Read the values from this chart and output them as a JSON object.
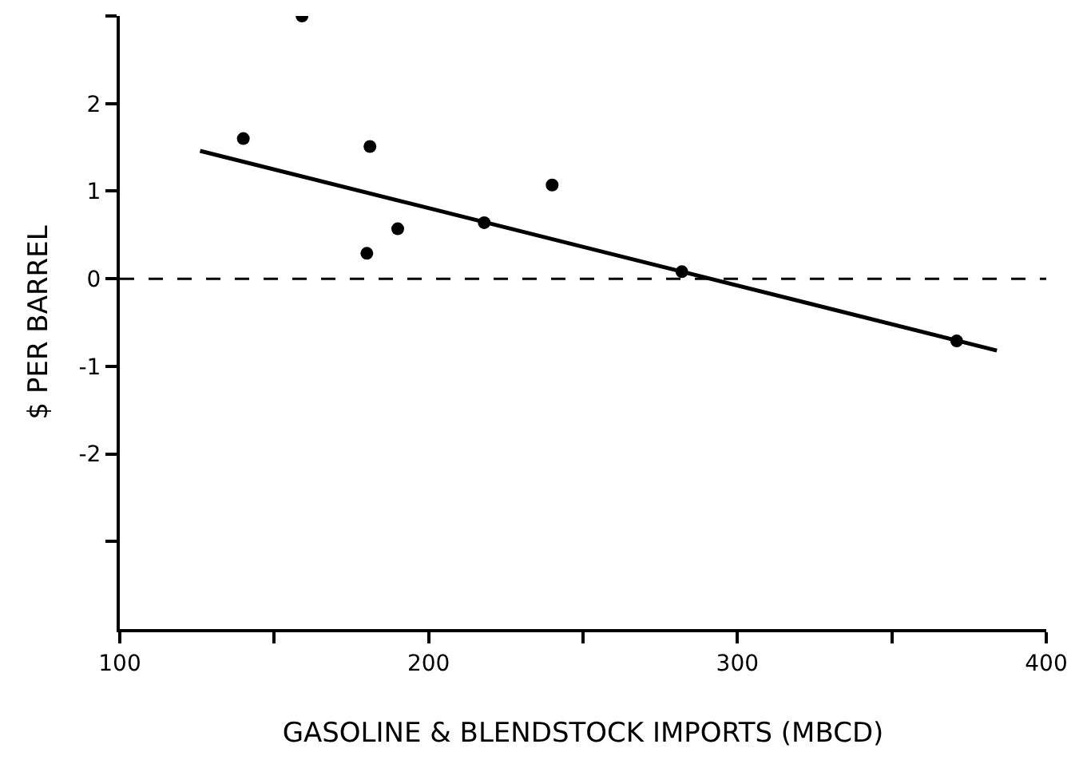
{
  "chart_data": {
    "type": "scatter",
    "xlabel": "GASOLINE & BLENDSTOCK IMPORTS (MBCD)",
    "ylabel": "$ PER BARREL",
    "xlim": [
      100,
      400
    ],
    "ylim": [
      -4,
      3
    ],
    "xticks": [
      100,
      {
        "value": 150,
        "label": null
      },
      200,
      {
        "value": 250,
        "label": null
      },
      300,
      {
        "value": 350,
        "label": null
      },
      400
    ],
    "yticks": [
      {
        "value": -3,
        "label": null
      },
      -2,
      -1,
      0,
      1,
      2,
      {
        "value": 3,
        "label": null
      }
    ],
    "ref_lines": [
      {
        "axis": "y",
        "value": 0,
        "line_style": "dashed",
        "color": "#000000"
      }
    ],
    "series": [
      {
        "marker": "circle",
        "color": "#000000",
        "x": [
          140,
          159,
          180,
          181,
          190,
          218,
          240,
          282,
          371
        ],
        "values": [
          1.6,
          3.0,
          0.29,
          1.51,
          0.57,
          0.64,
          1.07,
          0.08,
          -0.71
        ]
      },
      {
        "type": "line",
        "marker": "none",
        "color": "#000000",
        "line_style": "solid",
        "x": [
          126,
          384
        ],
        "values": [
          1.46,
          -0.82
        ]
      }
    ]
  }
}
